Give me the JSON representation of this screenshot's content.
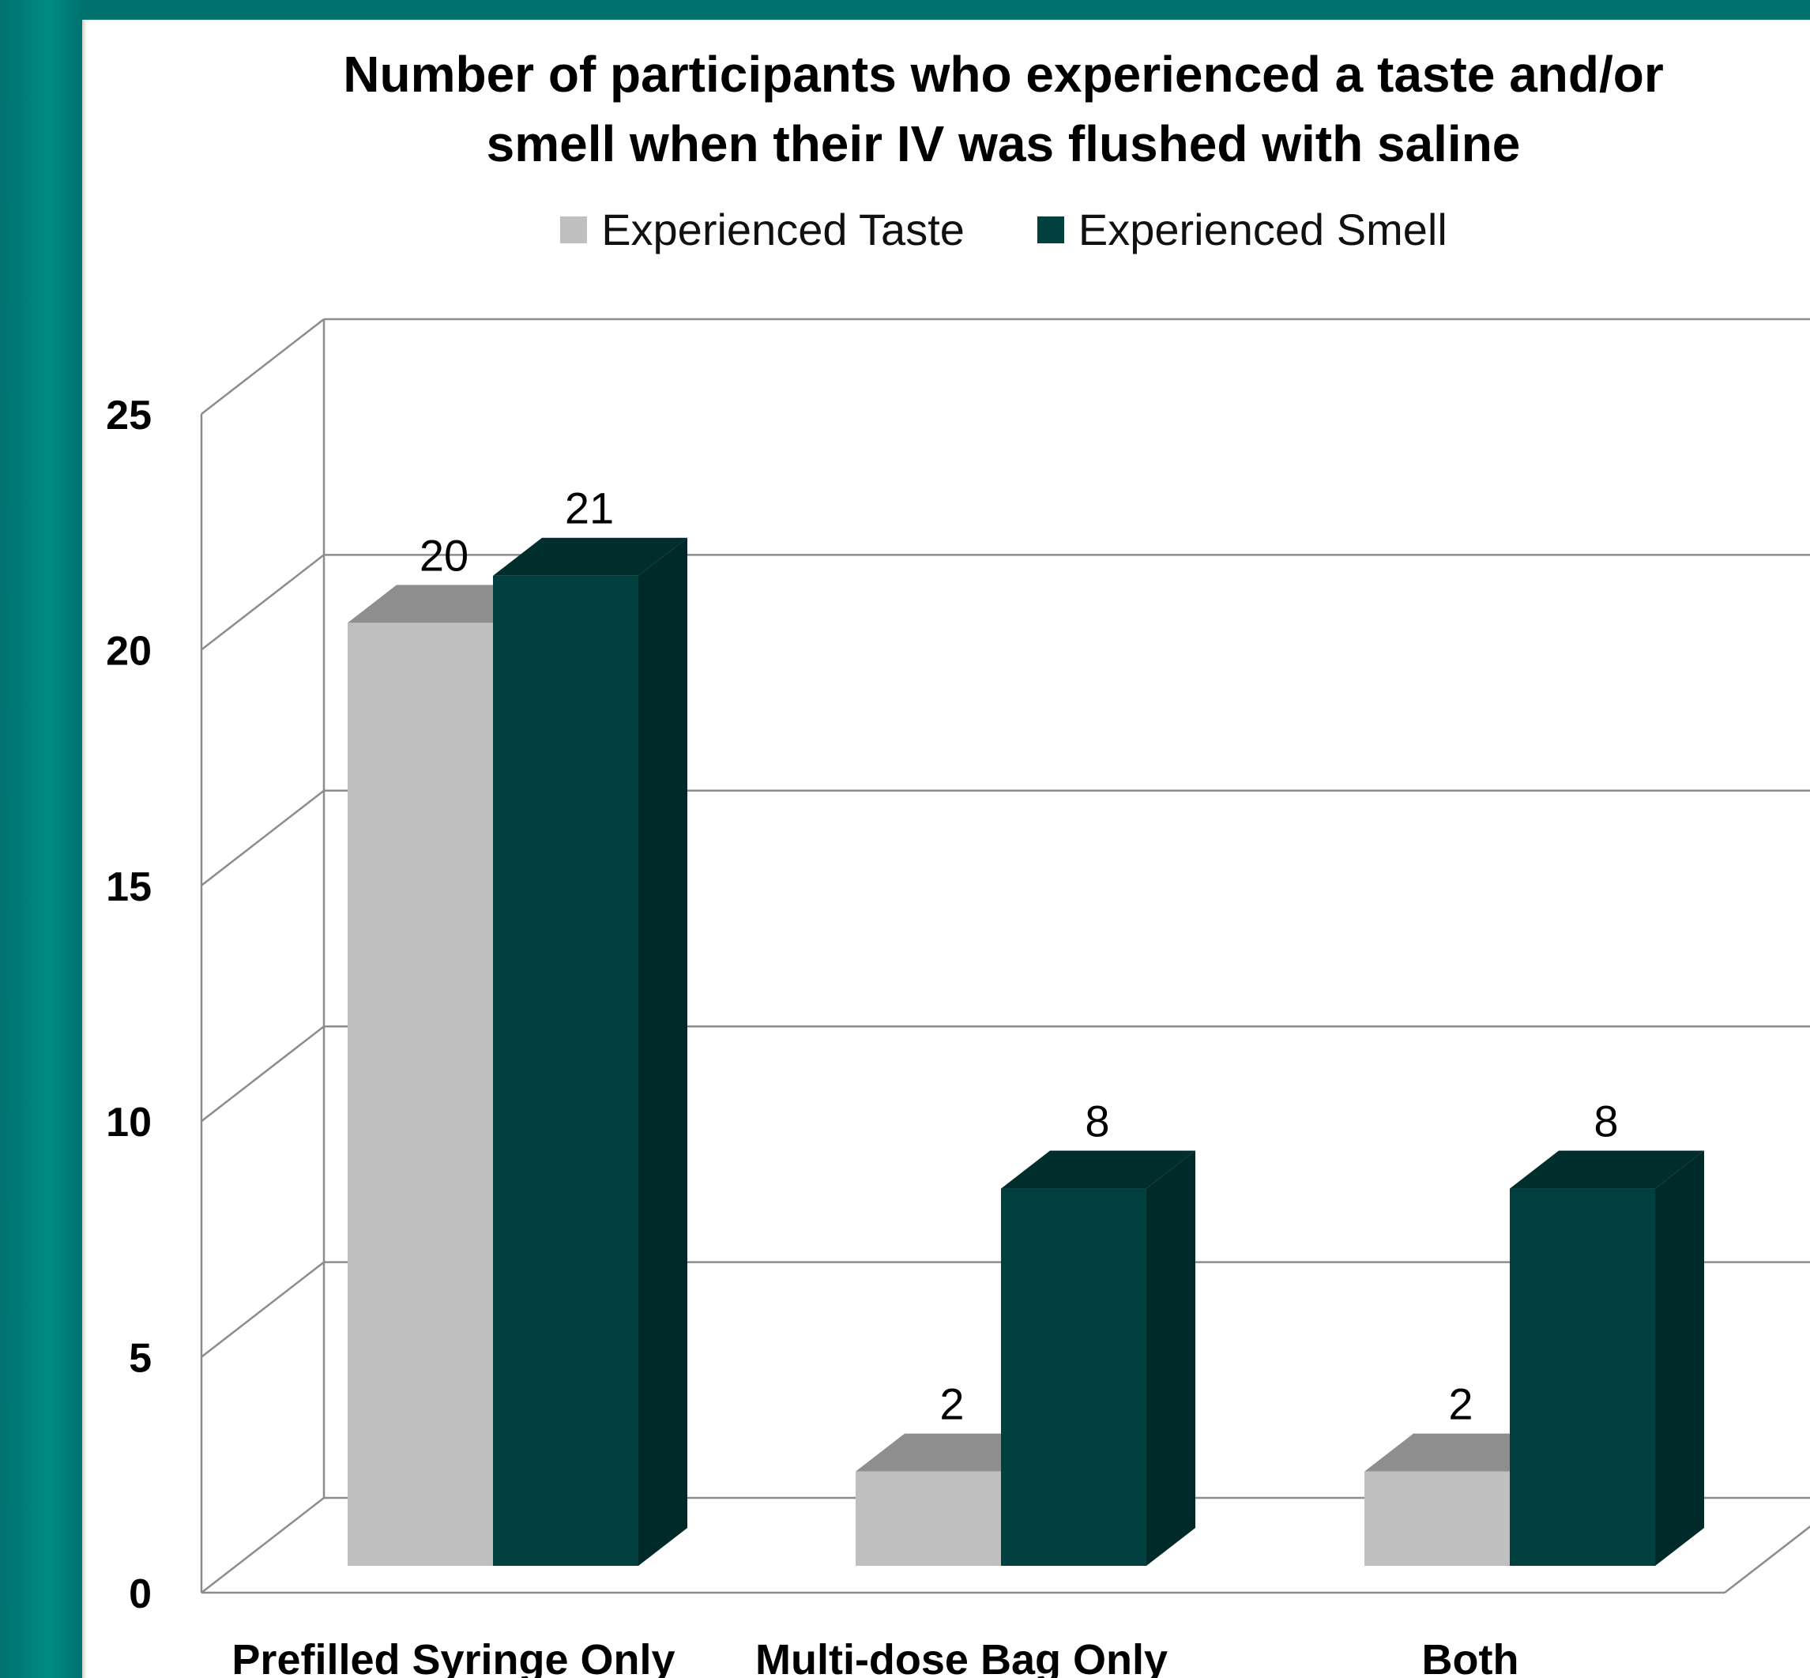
{
  "colors": {
    "frame": "#00716f",
    "taste": "#bfbfbf",
    "smell": "#00403f",
    "gridline": "#8c8c8c"
  },
  "chart_data": {
    "type": "bar",
    "title": "Number of participants who experienced a taste and/or smell when their IV was flushed with saline",
    "title_lines": [
      "Number of participants who experienced a taste and/or",
      "smell when their IV was flushed with saline"
    ],
    "categories": [
      "Prefilled Syringe Only",
      "Multi-dose Bag Only",
      "Both"
    ],
    "series": [
      {
        "name": "Experienced Taste",
        "values": [
          20,
          2,
          2
        ]
      },
      {
        "name": "Experienced Smell",
        "values": [
          21,
          8,
          8
        ]
      }
    ],
    "ylim": [
      0,
      25
    ],
    "yticks": [
      0,
      5,
      10,
      15,
      20,
      25
    ],
    "grid": true,
    "legend_position": "top",
    "style": "3d-clustered-column",
    "data_labels": true
  }
}
